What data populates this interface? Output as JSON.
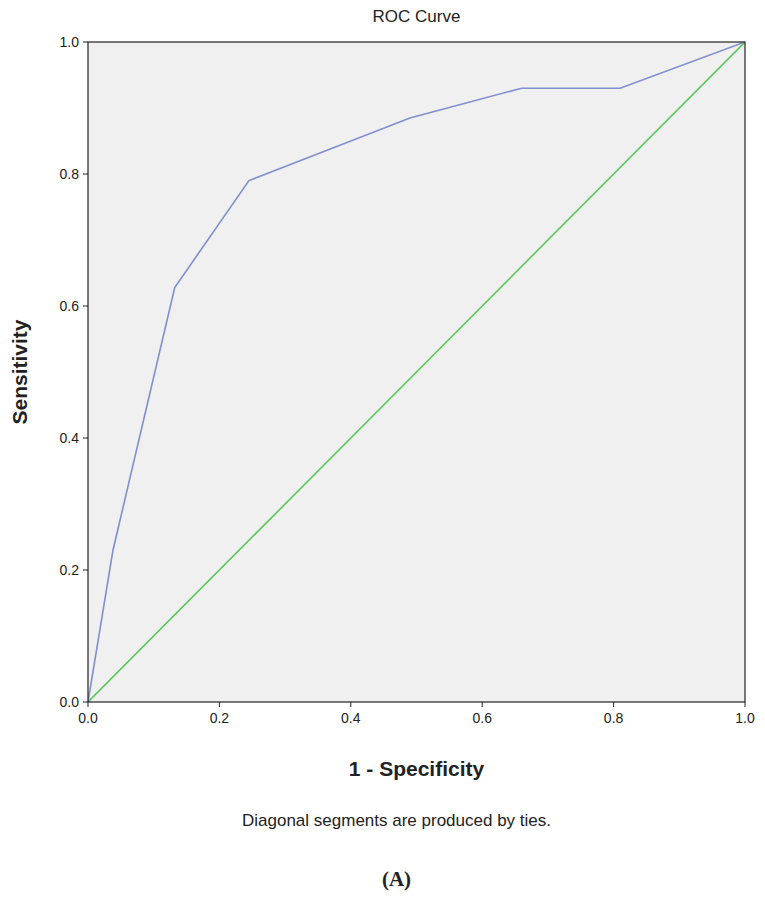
{
  "chart_data": {
    "type": "line",
    "title": "ROC Curve",
    "x_label": "1 - Specificity",
    "y_label": "Sensitivity",
    "annotations": [
      "Diagonal segments are produced by ties.",
      "(A)"
    ],
    "series": [
      {
        "color": "#7f8fd0",
        "x": [
          0,
          0.038,
          0.132,
          0.245,
          0.49,
          0.66,
          0.81,
          1
        ],
        "values": [
          0,
          0.23,
          0.628,
          0.79,
          0.885,
          0.93,
          0.93,
          1
        ]
      },
      {
        "color": "#5cc85c",
        "x": [
          0,
          1
        ],
        "values": [
          0,
          1
        ]
      }
    ],
    "xlim": [
      0,
      1
    ],
    "ylim": [
      0,
      1
    ],
    "xticks": [
      {
        "value": 0,
        "label": "0.0"
      },
      0.2,
      0.4,
      0.6,
      0.8,
      {
        "value": 1,
        "label": "1.0"
      }
    ],
    "yticks": [
      {
        "value": 0,
        "label": "0.0"
      },
      0.2,
      0.4,
      0.6,
      0.8,
      {
        "value": 1,
        "label": "1.0"
      }
    ],
    "grid": false
  }
}
